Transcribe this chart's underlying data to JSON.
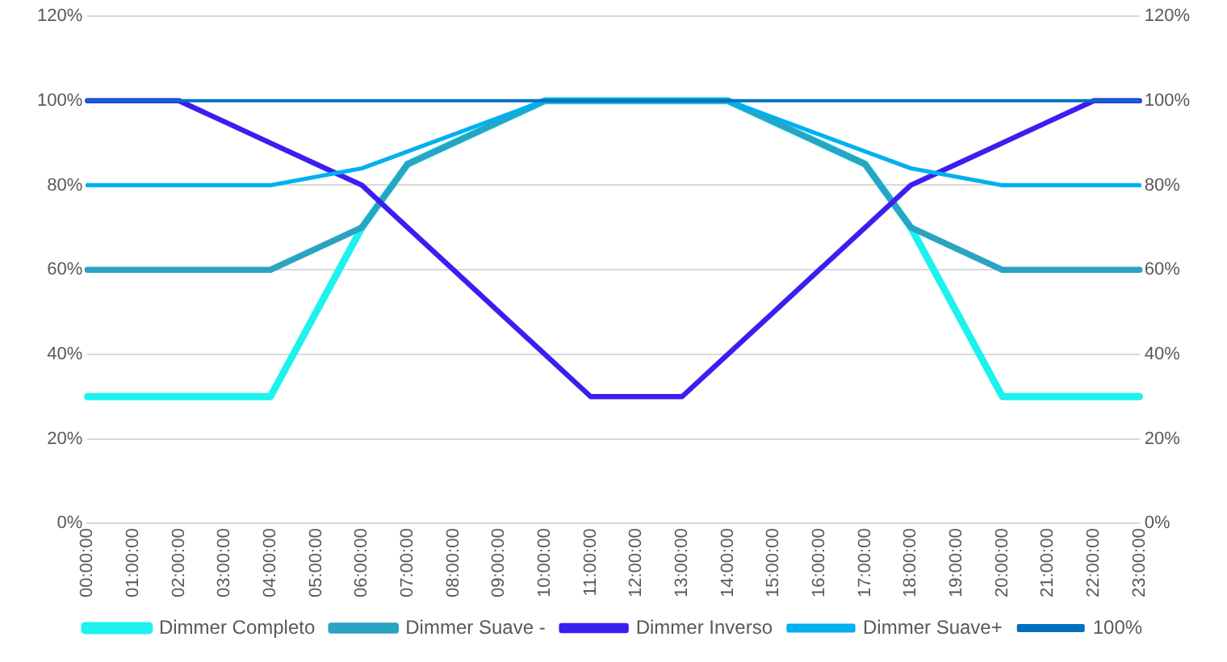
{
  "chart_data": {
    "type": "line",
    "categories": [
      "00:00:00",
      "01:00:00",
      "02:00:00",
      "03:00:00",
      "04:00:00",
      "05:00:00",
      "06:00:00",
      "07:00:00",
      "08:00:00",
      "09:00:00",
      "10:00:00",
      "11:00:00",
      "12:00:00",
      "13:00:00",
      "14:00:00",
      "15:00:00",
      "16:00:00",
      "17:00:00",
      "18:00:00",
      "19:00:00",
      "20:00:00",
      "21:00:00",
      "22:00:00",
      "23:00:00"
    ],
    "series": [
      {
        "name": "Dimmer Completo",
        "color": "#1ef2ef",
        "values": [
          30,
          30,
          30,
          30,
          30,
          50,
          70,
          85,
          90,
          95,
          100,
          100,
          100,
          100,
          100,
          95,
          90,
          85,
          70,
          50,
          30,
          30,
          30,
          30
        ]
      },
      {
        "name": "Dimmer Suave -",
        "color": "#2ba3c2",
        "values": [
          60,
          60,
          60,
          60,
          60,
          65,
          70,
          85,
          90,
          95,
          100,
          100,
          100,
          100,
          100,
          95,
          90,
          85,
          70,
          65,
          60,
          60,
          60,
          60
        ]
      },
      {
        "name": "Dimmer Inverso",
        "color": "#3a1ff0",
        "values": [
          100,
          100,
          100,
          95,
          90,
          85,
          80,
          70,
          60,
          50,
          40,
          30,
          30,
          30,
          40,
          50,
          60,
          70,
          80,
          85,
          90,
          95,
          100,
          100
        ]
      },
      {
        "name": "Dimmer Suave+",
        "color": "#00b0f0",
        "values": [
          80,
          80,
          80,
          80,
          80,
          82,
          84,
          88,
          92,
          96,
          100,
          100,
          100,
          100,
          100,
          96,
          92,
          88,
          84,
          82,
          80,
          80,
          80,
          80
        ]
      },
      {
        "name": "100%",
        "color": "#0070c0",
        "values": [
          100,
          100,
          100,
          100,
          100,
          100,
          100,
          100,
          100,
          100,
          100,
          100,
          100,
          100,
          100,
          100,
          100,
          100,
          100,
          100,
          100,
          100,
          100,
          100
        ]
      }
    ],
    "ylim": [
      0,
      120
    ],
    "yticks": [
      {
        "value": 0,
        "label": "0%"
      },
      {
        "value": 20,
        "label": "20%"
      },
      {
        "value": 40,
        "label": "40%"
      },
      {
        "value": 60,
        "label": "60%"
      },
      {
        "value": 80,
        "label": "80%"
      },
      {
        "value": 100,
        "label": "100%"
      },
      {
        "value": 120,
        "label": "120%"
      }
    ],
    "y2lim": [
      0,
      120
    ],
    "y2ticks": [
      {
        "value": 0,
        "label": "0%"
      },
      {
        "value": 20,
        "label": "20%"
      },
      {
        "value": 40,
        "label": "40%"
      },
      {
        "value": 60,
        "label": "60%"
      },
      {
        "value": 80,
        "label": "80%"
      },
      {
        "value": 100,
        "label": "100%"
      },
      {
        "value": 120,
        "label": "120%"
      }
    ],
    "grid": "y",
    "legend": "bottom",
    "marker": "none",
    "line_style": "solid"
  }
}
